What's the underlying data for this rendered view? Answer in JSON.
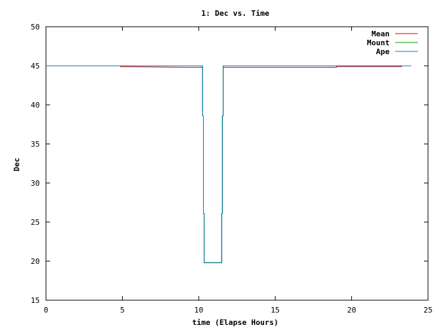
{
  "chart_data": {
    "type": "line",
    "title": "1: Dec vs. Time",
    "xlabel": "time (Elapse Hours)",
    "ylabel": "Dec",
    "xlim": [
      0,
      25
    ],
    "ylim": [
      15,
      50
    ],
    "xticks": [
      0,
      5,
      10,
      15,
      20,
      25
    ],
    "yticks": [
      15,
      20,
      25,
      30,
      35,
      40,
      45,
      50
    ],
    "grid": false,
    "legend_position": "top-right",
    "series": [
      {
        "name": "Mean",
        "color": "#cc0000",
        "step": true,
        "points": [
          [
            4.85,
            44.9
          ],
          [
            8.9,
            44.8
          ],
          [
            10.25,
            44.8
          ],
          [
            10.25,
            38.6
          ],
          [
            10.3,
            38.6
          ],
          [
            10.3,
            26.1
          ],
          [
            10.35,
            26.1
          ],
          [
            10.35,
            19.8
          ],
          [
            11.5,
            19.8
          ],
          [
            11.5,
            26.1
          ],
          [
            11.55,
            26.1
          ],
          [
            11.55,
            38.6
          ],
          [
            11.6,
            38.6
          ],
          [
            11.6,
            44.8
          ],
          [
            19,
            44.8
          ],
          [
            19,
            44.9
          ],
          [
            23.3,
            44.9
          ]
        ]
      },
      {
        "name": "Mount",
        "color": "#00a000",
        "step": true,
        "points": [
          [
            0,
            45
          ],
          [
            10.25,
            45
          ],
          [
            10.25,
            38.6
          ],
          [
            10.3,
            38.6
          ],
          [
            10.3,
            26.1
          ],
          [
            10.35,
            26.1
          ],
          [
            10.35,
            19.8
          ],
          [
            11.5,
            19.8
          ],
          [
            11.5,
            26.1
          ],
          [
            11.55,
            26.1
          ],
          [
            11.55,
            38.6
          ],
          [
            11.6,
            38.6
          ],
          [
            11.6,
            45
          ],
          [
            23.9,
            45
          ]
        ]
      },
      {
        "name": "Ape",
        "color": "#0080c0",
        "step": true,
        "points": [
          [
            0,
            45
          ],
          [
            10.25,
            45
          ],
          [
            10.25,
            38.6
          ],
          [
            10.3,
            38.6
          ],
          [
            10.3,
            26.1
          ],
          [
            10.35,
            26.1
          ],
          [
            10.35,
            19.8
          ],
          [
            11.5,
            19.8
          ],
          [
            11.5,
            26.1
          ],
          [
            11.55,
            26.1
          ],
          [
            11.55,
            38.6
          ],
          [
            11.6,
            38.6
          ],
          [
            11.6,
            45
          ],
          [
            23.9,
            45
          ]
        ]
      }
    ]
  }
}
